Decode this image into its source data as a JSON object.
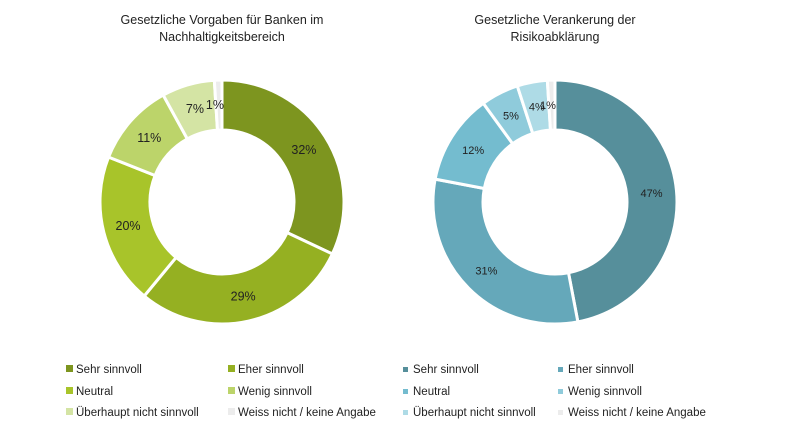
{
  "chart_data": [
    {
      "type": "pie",
      "donut": true,
      "title_lines": [
        "Gesetzliche Vorgaben für Banken im",
        "Nachhaltigkeitsbereich"
      ],
      "categories": [
        "Sehr sinnvoll",
        "Eher sinnvoll",
        "Neutral",
        "Wenig sinnvoll",
        "Überhaupt nicht sinnvoll",
        "Weiss nicht / keine Angabe"
      ],
      "values": [
        32,
        29,
        20,
        11,
        7,
        1
      ],
      "labels": [
        "32%",
        "29%",
        "20%",
        "11%",
        "7%",
        "1%"
      ],
      "colors": [
        "#7d951f",
        "#95b022",
        "#a8c42a",
        "#bcd46a",
        "#d4e4a4",
        "#ececec"
      ],
      "legend": "bottom"
    },
    {
      "type": "pie",
      "donut": true,
      "title_lines": [
        "Gesetzliche Verankerung der",
        "Risikoabklärung"
      ],
      "categories": [
        "Sehr sinnvoll",
        "Eher sinnvoll",
        "Neutral",
        "Wenig sinnvoll",
        "Überhaupt nicht sinnvoll",
        "Weiss nicht / keine Angabe"
      ],
      "values": [
        47,
        31,
        12,
        5,
        4,
        1
      ],
      "labels": [
        "47%",
        "31%",
        "12%",
        "5%",
        "4%",
        "1%"
      ],
      "colors": [
        "#568f9b",
        "#65a8ba",
        "#74bccf",
        "#8fcbdb",
        "#aedbe6",
        "#ececec"
      ],
      "legend": "bottom"
    }
  ]
}
